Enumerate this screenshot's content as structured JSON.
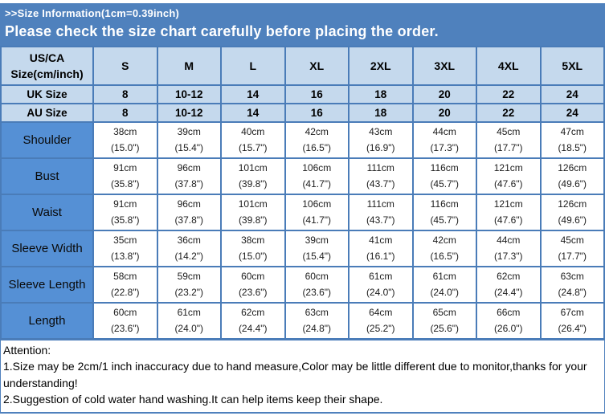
{
  "banner": {
    "size_info": ">>Size Information(1cm=0.39inch)",
    "warning": "Please check the size chart carefully before placing the order."
  },
  "table": {
    "corner_line1": "US/CA",
    "corner_line2": "Size(cm/inch)",
    "sizes": [
      "S",
      "M",
      "L",
      "XL",
      "2XL",
      "3XL",
      "4XL",
      "5XL"
    ],
    "uk_label": "UK Size",
    "uk_values": [
      "8",
      "10-12",
      "14",
      "16",
      "18",
      "20",
      "22",
      "24"
    ],
    "au_label": "AU Size",
    "au_values": [
      "8",
      "10-12",
      "14",
      "16",
      "18",
      "20",
      "22",
      "24"
    ],
    "measurements": [
      {
        "label": "Shoulder",
        "cm": [
          "38cm",
          "39cm",
          "40cm",
          "42cm",
          "43cm",
          "44cm",
          "45cm",
          "47cm"
        ],
        "inch": [
          "(15.0\")",
          "(15.4\")",
          "(15.7\")",
          "(16.5\")",
          "(16.9\")",
          "(17.3\")",
          "(17.7\")",
          "(18.5\")"
        ]
      },
      {
        "label": "Bust",
        "cm": [
          "91cm",
          "96cm",
          "101cm",
          "106cm",
          "111cm",
          "116cm",
          "121cm",
          "126cm"
        ],
        "inch": [
          "(35.8\")",
          "(37.8\")",
          "(39.8\")",
          "(41.7\")",
          "(43.7\")",
          "(45.7\")",
          "(47.6\")",
          "(49.6\")"
        ]
      },
      {
        "label": "Waist",
        "cm": [
          "91cm",
          "96cm",
          "101cm",
          "106cm",
          "111cm",
          "116cm",
          "121cm",
          "126cm"
        ],
        "inch": [
          "(35.8\")",
          "(37.8\")",
          "(39.8\")",
          "(41.7\")",
          "(43.7\")",
          "(45.7\")",
          "(47.6\")",
          "(49.6\")"
        ]
      },
      {
        "label": "Sleeve Width",
        "cm": [
          "35cm",
          "36cm",
          "38cm",
          "39cm",
          "41cm",
          "42cm",
          "44cm",
          "45cm"
        ],
        "inch": [
          "(13.8\")",
          "(14.2\")",
          "(15.0\")",
          "(15.4\")",
          "(16.1\")",
          "(16.5\")",
          "(17.3\")",
          "(17.7\")"
        ]
      },
      {
        "label": "Sleeve Length",
        "cm": [
          "58cm",
          "59cm",
          "60cm",
          "60cm",
          "61cm",
          "61cm",
          "62cm",
          "63cm"
        ],
        "inch": [
          "(22.8\")",
          "(23.2\")",
          "(23.6\")",
          "(23.6\")",
          "(24.0\")",
          "(24.0\")",
          "(24.4\")",
          "(24.8\")"
        ]
      },
      {
        "label": "Length",
        "cm": [
          "60cm",
          "61cm",
          "62cm",
          "63cm",
          "64cm",
          "65cm",
          "66cm",
          "67cm"
        ],
        "inch": [
          "(23.6\")",
          "(24.0\")",
          "(24.4\")",
          "(24.8\")",
          "(25.2\")",
          "(25.6\")",
          "(26.0\")",
          "(26.4\")"
        ]
      }
    ]
  },
  "attention": {
    "title": "Attention:",
    "notes": [
      "1.Size may be 2cm/1 inch inaccuracy due to hand measure,Color may be little different due to monitor,thanks for your understanding!",
      "2.Suggestion of cold water hand washing.It can help items keep their shape."
    ]
  },
  "colors": {
    "banner_blue": "#4F81BD",
    "header_light_blue": "#C5D9ED",
    "label_blue": "#5590D5",
    "border_blue": "#4A7CB8"
  }
}
